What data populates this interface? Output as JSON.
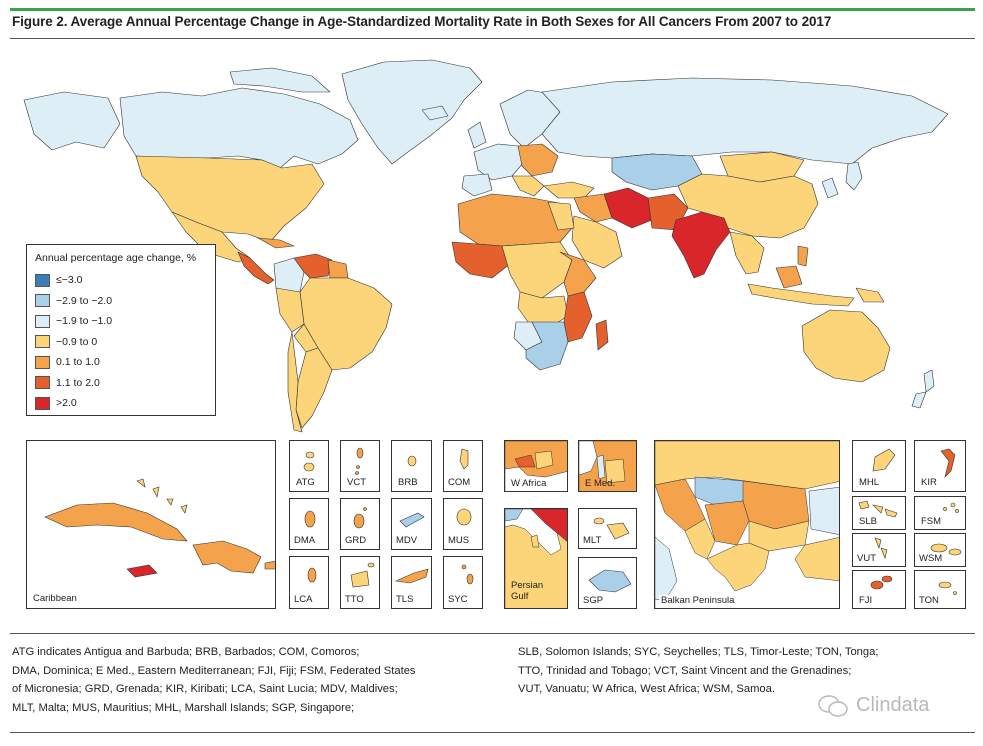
{
  "figure": {
    "title": "Figure 2. Average Annual Percentage Change in Age-Standardized Mortality Rate in Both Sexes for All Cancers From 2007 to 2017"
  },
  "colors": {
    "accent_rule": "#3aa34a",
    "ocean": "#ffffff",
    "border": "#333333",
    "dark_blue": "#3e7eb8",
    "mid_blue": "#a9d0e8",
    "light_blue": "#ddeef6",
    "yellow": "#fcd47a",
    "light_orange": "#f4a24c",
    "dark_orange": "#e4602d",
    "red": "#d9262a"
  },
  "legend": {
    "title": "Annual percentage age change, %",
    "items": [
      {
        "label": "≤−3.0",
        "color": "#3e7eb8"
      },
      {
        "label": "−2.9 to −2.0",
        "color": "#a9d0e8"
      },
      {
        "label": "−1.9 to −1.0",
        "color": "#ddeef6"
      },
      {
        "label": "−0.9 to 0",
        "color": "#fcd47a"
      },
      {
        "label": "0.1 to 1.0",
        "color": "#f4a24c"
      },
      {
        "label": "1.1 to 2.0",
        "color": "#e4602d"
      },
      {
        "label": ">2.0",
        "color": "#d9262a"
      }
    ]
  },
  "insets": {
    "caribbean": "Caribbean",
    "atg": "ATG",
    "vct": "VCT",
    "brb": "BRB",
    "com": "COM",
    "dma": "DMA",
    "grd": "GRD",
    "mdv": "MDV",
    "mus": "MUS",
    "lca": "LCA",
    "tto": "TTO",
    "tls": "TLS",
    "syc": "SYC",
    "w_africa": "W Africa",
    "e_med": "E Med.",
    "persian_gulf": "Persian Gulf",
    "mlt": "MLT",
    "sgp": "SGP",
    "balkan": "Balkan Peninsula",
    "mhl": "MHL",
    "kir": "KIR",
    "slb": "SLB",
    "fsm": "FSM",
    "vut": "VUT",
    "wsm": "WSM",
    "fji": "FJI",
    "ton": "TON"
  },
  "notes": {
    "left": [
      "ATG indicates Antigua and Barbuda; BRB, Barbados; COM, Comoros;",
      "DMA, Dominica; E Med., Eastern Mediterranean; FJI, Fiji; FSM, Federated States",
      "of Micronesia; GRD, Grenada; KIR, Kiribati; LCA, Saint Lucia; MDV, Maldives;",
      "MLT, Malta; MUS, Mauritius; MHL, Marshall Islands; SGP, Singapore;"
    ],
    "right": [
      "SLB, Solomon Islands; SYC, Seychelles; TLS, Timor-Leste; TON, Tonga;",
      "TTO, Trinidad and Tobago; VCT, Saint Vincent and the Grenadines;",
      "VUT, Vanuatu; W Africa, West Africa; WSM, Samoa."
    ]
  },
  "watermark": "Clindata"
}
